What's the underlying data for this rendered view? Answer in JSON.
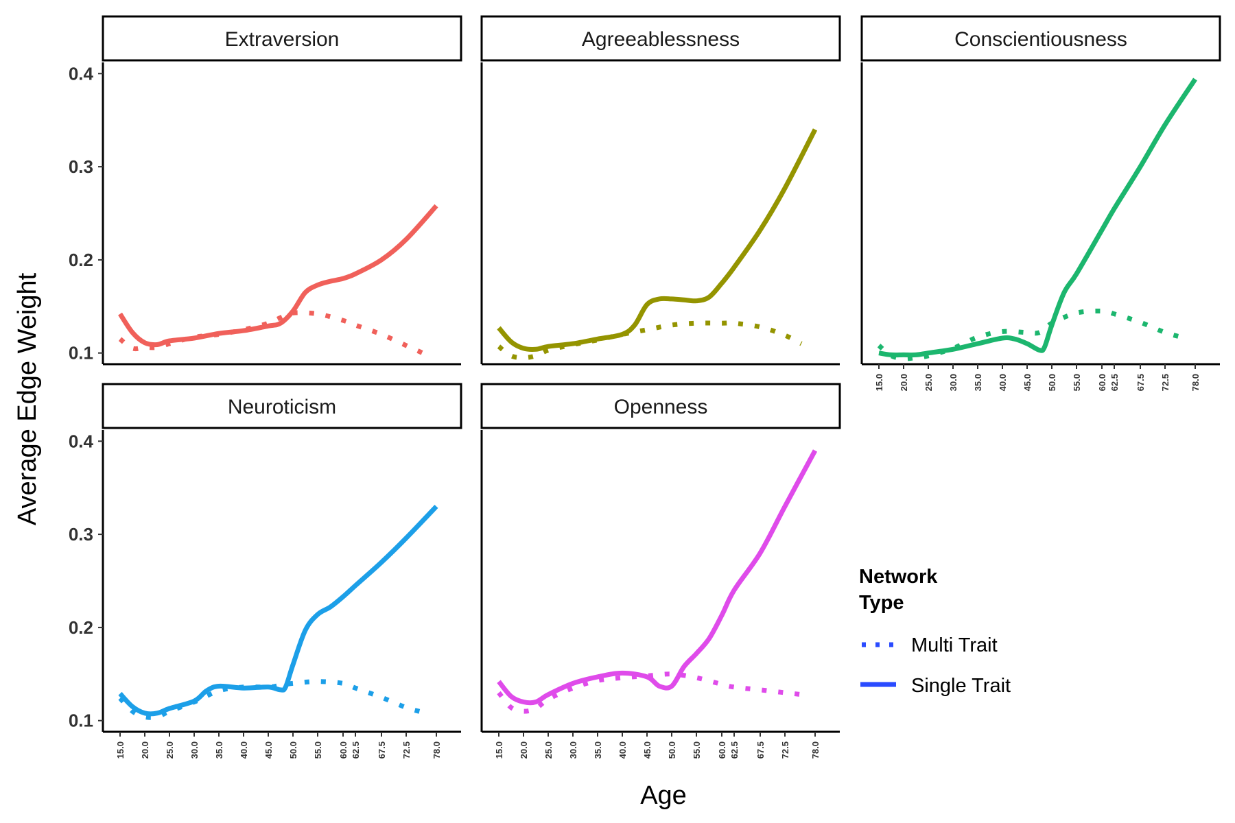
{
  "chart_data": {
    "type": "line",
    "facets": [
      "Extraversion",
      "Agreeablessness",
      "Conscientiousness",
      "Neuroticism",
      "Openness"
    ],
    "xlabel": "Age",
    "ylabel": "Average Edge Weight",
    "x_ticks": [
      15.0,
      20.0,
      25.0,
      30.0,
      35.0,
      40.0,
      45.0,
      50.0,
      55.0,
      60.0,
      62.5,
      67.5,
      72.5,
      78.0
    ],
    "x_tick_labels": [
      "15.0",
      "20.0",
      "25.0",
      "30.0",
      "35.0",
      "40.0",
      "45.0",
      "50.0",
      "55.0",
      "60.0",
      "62.5",
      "67.5",
      "72.5",
      "78.0"
    ],
    "y_ticks": [
      0.1,
      0.2,
      0.3,
      0.4
    ],
    "y_tick_labels": [
      "0.1",
      "0.2",
      "0.3",
      "0.4"
    ],
    "ylim": [
      0.088,
      0.412
    ],
    "legend": {
      "title_lines": [
        "Network",
        "Type"
      ],
      "position": "right",
      "entries": [
        {
          "label": "Multi Trait",
          "style": "dotted",
          "color": "#2a4bff"
        },
        {
          "label": "Single Trait",
          "style": "solid",
          "color": "#2a4bff"
        }
      ]
    },
    "panels": [
      {
        "facet": "Extraversion",
        "color": "#f0605a",
        "series": [
          {
            "name": "Multi Trait",
            "x": [
              15.0,
              17.5,
              20.0,
              22.5,
              25.0,
              30.0,
              35.0,
              40.0,
              45.0,
              47.5,
              50.0,
              55.0,
              60.0,
              62.5,
              67.5,
              72.5,
              75.5
            ],
            "y": [
              0.115,
              0.105,
              0.106,
              0.106,
              0.11,
              0.117,
              0.12,
              0.125,
              0.132,
              0.138,
              0.143,
              0.142,
              0.135,
              0.13,
              0.12,
              0.108,
              0.1
            ]
          },
          {
            "name": "Single Trait",
            "x": [
              15.0,
              17.5,
              20.0,
              22.5,
              25.0,
              30.0,
              35.0,
              40.0,
              45.0,
              47.5,
              50.0,
              52.5,
              55.0,
              57.5,
              60.0,
              62.5,
              67.5,
              72.5,
              78.0
            ],
            "y": [
              0.142,
              0.122,
              0.111,
              0.109,
              0.113,
              0.116,
              0.121,
              0.124,
              0.129,
              0.132,
              0.145,
              0.165,
              0.173,
              0.177,
              0.18,
              0.185,
              0.2,
              0.222,
              0.258
            ]
          }
        ]
      },
      {
        "facet": "Agreeablessness",
        "color": "#949400",
        "series": [
          {
            "name": "Multi Trait",
            "x": [
              15.0,
              17.5,
              20.0,
              22.5,
              25.0,
              30.0,
              35.0,
              40.0,
              45.0,
              50.0,
              55.0,
              60.0,
              62.5,
              67.5,
              72.5,
              75.5
            ],
            "y": [
              0.107,
              0.097,
              0.095,
              0.097,
              0.103,
              0.109,
              0.114,
              0.12,
              0.125,
              0.13,
              0.132,
              0.132,
              0.132,
              0.128,
              0.119,
              0.11
            ]
          },
          {
            "name": "Single Trait",
            "x": [
              15.0,
              17.5,
              20.0,
              22.5,
              25.0,
              30.0,
              35.0,
              40.0,
              42.5,
              45.0,
              47.5,
              50.0,
              52.5,
              55.0,
              57.5,
              60.0,
              62.5,
              67.5,
              72.5,
              78.0
            ],
            "y": [
              0.127,
              0.112,
              0.105,
              0.104,
              0.107,
              0.11,
              0.115,
              0.12,
              0.13,
              0.152,
              0.158,
              0.158,
              0.157,
              0.156,
              0.16,
              0.175,
              0.192,
              0.232,
              0.277,
              0.34
            ]
          }
        ]
      },
      {
        "facet": "Conscientiousness",
        "color": "#1cb66e",
        "series": [
          {
            "name": "Multi Trait",
            "x": [
              15.0,
              17.5,
              20.0,
              22.5,
              25.0,
              30.0,
              35.0,
              40.0,
              45.0,
              47.5,
              50.0,
              55.0,
              60.0,
              62.5,
              67.5,
              72.5,
              75.5
            ],
            "y": [
              0.108,
              0.097,
              0.094,
              0.095,
              0.097,
              0.105,
              0.117,
              0.123,
              0.122,
              0.122,
              0.132,
              0.143,
              0.145,
              0.142,
              0.133,
              0.122,
              0.117
            ]
          },
          {
            "name": "Single Trait",
            "x": [
              15.0,
              17.5,
              20.0,
              22.5,
              25.0,
              30.0,
              35.0,
              40.0,
              42.5,
              45.0,
              47.5,
              48.5,
              50.0,
              52.5,
              55.0,
              60.0,
              62.5,
              67.5,
              72.5,
              78.0
            ],
            "y": [
              0.1,
              0.098,
              0.098,
              0.098,
              0.1,
              0.104,
              0.11,
              0.116,
              0.115,
              0.11,
              0.103,
              0.106,
              0.13,
              0.165,
              0.185,
              0.232,
              0.255,
              0.3,
              0.345,
              0.394
            ]
          }
        ]
      },
      {
        "facet": "Neuroticism",
        "color": "#1c9fe8",
        "series": [
          {
            "name": "Multi Trait",
            "x": [
              15.0,
              17.5,
              20.0,
              22.5,
              25.0,
              30.0,
              35.0,
              40.0,
              45.0,
              47.5,
              50.0,
              55.0,
              60.0,
              62.5,
              67.5,
              72.5,
              75.5
            ],
            "y": [
              0.124,
              0.11,
              0.104,
              0.104,
              0.11,
              0.12,
              0.132,
              0.136,
              0.136,
              0.138,
              0.14,
              0.142,
              0.14,
              0.135,
              0.125,
              0.114,
              0.109
            ]
          },
          {
            "name": "Single Trait",
            "x": [
              15.0,
              17.5,
              20.0,
              22.5,
              25.0,
              30.0,
              32.5,
              35.0,
              40.0,
              45.0,
              47.5,
              48.5,
              50.0,
              52.5,
              55.0,
              57.5,
              60.0,
              62.5,
              67.5,
              72.5,
              78.0
            ],
            "y": [
              0.129,
              0.115,
              0.108,
              0.108,
              0.113,
              0.121,
              0.132,
              0.137,
              0.135,
              0.136,
              0.133,
              0.136,
              0.16,
              0.197,
              0.214,
              0.222,
              0.233,
              0.245,
              0.27,
              0.296,
              0.33
            ]
          }
        ]
      },
      {
        "facet": "Openness",
        "color": "#df4bea",
        "series": [
          {
            "name": "Multi Trait",
            "x": [
              15.0,
              17.5,
              20.0,
              22.5,
              25.0,
              30.0,
              35.0,
              40.0,
              45.0,
              50.0,
              55.0,
              60.0,
              62.5,
              67.5,
              72.5,
              75.5
            ],
            "y": [
              0.13,
              0.114,
              0.11,
              0.113,
              0.123,
              0.135,
              0.143,
              0.146,
              0.148,
              0.15,
              0.146,
              0.139,
              0.136,
              0.133,
              0.13,
              0.128
            ]
          },
          {
            "name": "Single Trait",
            "x": [
              15.0,
              17.5,
              20.0,
              22.5,
              25.0,
              30.0,
              35.0,
              40.0,
              45.0,
              47.5,
              50.0,
              52.5,
              55.0,
              57.5,
              60.0,
              62.5,
              67.5,
              72.5,
              78.0
            ],
            "y": [
              0.142,
              0.126,
              0.12,
              0.12,
              0.128,
              0.14,
              0.147,
              0.151,
              0.147,
              0.137,
              0.137,
              0.158,
              0.172,
              0.188,
              0.213,
              0.24,
              0.28,
              0.33,
              0.39
            ]
          }
        ]
      }
    ]
  }
}
